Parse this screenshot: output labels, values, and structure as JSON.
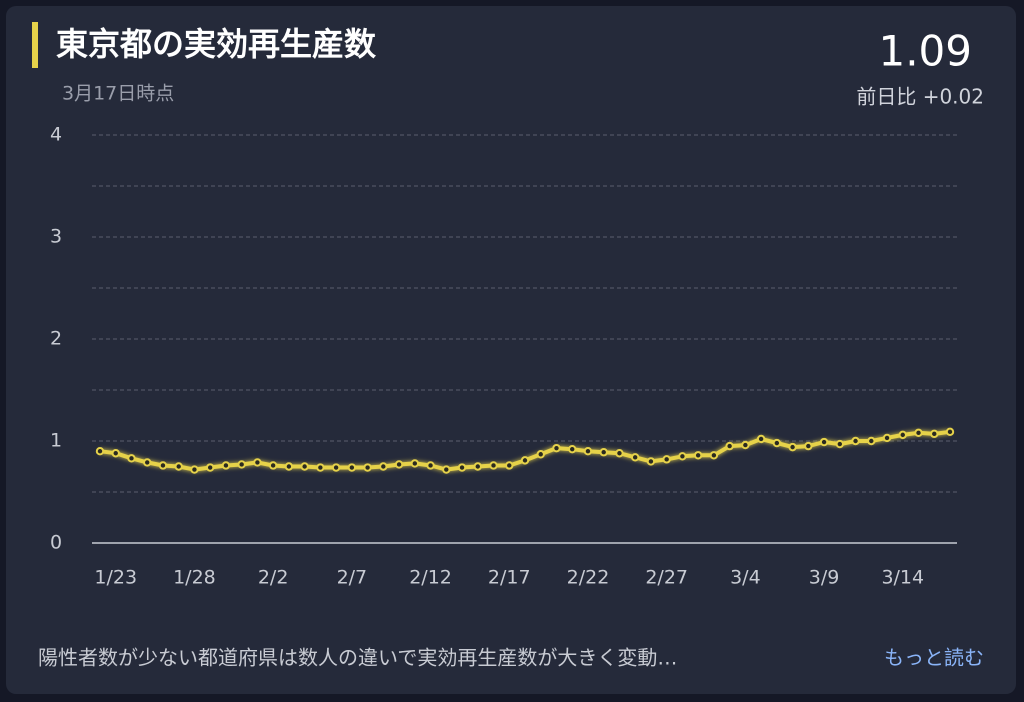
{
  "chart_data": {
    "type": "line",
    "title": "東京都の実効再生産数",
    "subtitle": "3月17日時点",
    "headline_value": "1.09",
    "headline_change": "前日比 +0.02",
    "footer_text": "陽性者数が少ない都道府県は数人の違いで実効再生産数が大きく変動…",
    "footer_link": "もっと読む",
    "categories": [
      null,
      "1/23",
      null,
      null,
      null,
      null,
      "1/28",
      null,
      null,
      null,
      null,
      "2/2",
      null,
      null,
      null,
      null,
      "2/7",
      null,
      null,
      null,
      null,
      "2/12",
      null,
      null,
      null,
      null,
      "2/17",
      null,
      null,
      null,
      null,
      "2/22",
      null,
      null,
      null,
      null,
      "2/27",
      null,
      null,
      null,
      null,
      "3/4",
      null,
      null,
      null,
      null,
      "3/9",
      null,
      null,
      null,
      null,
      "3/14",
      null,
      null,
      null
    ],
    "series": [
      {
        "color": "#e6d24a",
        "values": [
          0.9,
          0.88,
          0.83,
          0.79,
          0.76,
          0.75,
          0.72,
          0.74,
          0.76,
          0.77,
          0.79,
          0.76,
          0.75,
          0.75,
          0.74,
          0.74,
          0.74,
          0.74,
          0.75,
          0.77,
          0.78,
          0.76,
          0.72,
          0.74,
          0.75,
          0.76,
          0.76,
          0.81,
          0.87,
          0.93,
          0.92,
          0.9,
          0.89,
          0.88,
          0.84,
          0.8,
          0.82,
          0.85,
          0.86,
          0.86,
          0.95,
          0.96,
          1.02,
          0.98,
          0.94,
          0.95,
          0.99,
          0.97,
          1.0,
          1.0,
          1.03,
          1.06,
          1.08,
          1.07,
          1.09
        ]
      }
    ],
    "ylim": [
      0,
      4
    ],
    "yticks": [
      0,
      1,
      2,
      3,
      4
    ],
    "minor_yticks": [
      0.5,
      1.5,
      2.5,
      3.5
    ],
    "grid": true
  }
}
